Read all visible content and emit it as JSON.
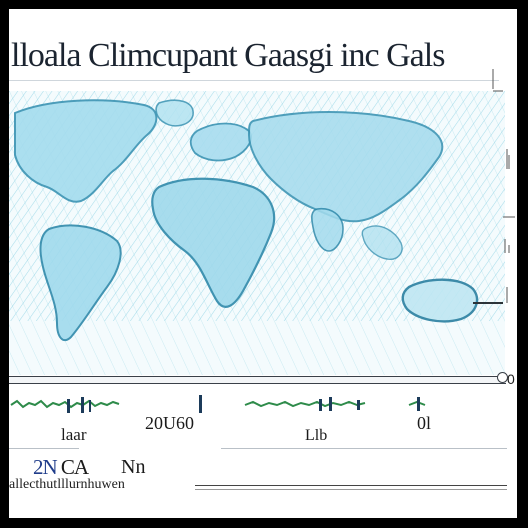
{
  "header": {
    "title": "lloala Climcupant Gaasgi inc Gals"
  },
  "map": {
    "colors": {
      "ocean_hatch": "#7fcfe2",
      "land_fill": "#a9dff0",
      "land_stroke": "#3a93b3"
    }
  },
  "axis": {
    "end_label": "0"
  },
  "labels": {
    "label_a": "laar",
    "label_b": "20U60",
    "label_c": "Llb",
    "label_d": "0l",
    "code_prefix": "2N",
    "code_suffix": " CA",
    "code_n": "Nn",
    "caption": "allecthutlllurnhuwen"
  }
}
